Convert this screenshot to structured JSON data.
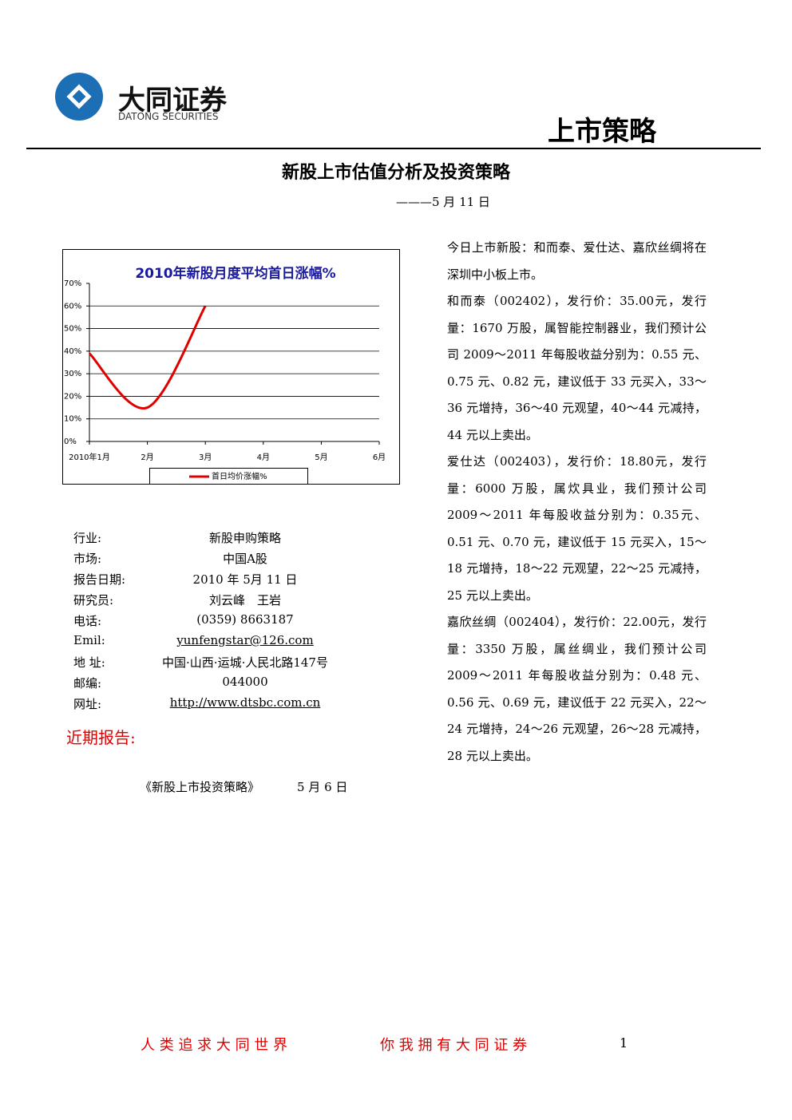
{
  "header": {
    "company": "大同证券",
    "company_en": "DATONG SECURITIES",
    "section": "上市策略"
  },
  "title": "新股上市估值分析及投资策略",
  "date": "———5 月 11 日",
  "chart_data": {
    "type": "line",
    "title": "2010年新股月度平均首日涨幅%",
    "categories": [
      "2010年1月",
      "2月",
      "3月",
      "4月",
      "5月",
      "6月"
    ],
    "series": [
      {
        "name": "首日均价涨幅%",
        "color": "#e00000",
        "values": [
          39,
          15,
          60,
          null,
          null,
          null
        ]
      }
    ],
    "ylim": [
      0,
      70
    ],
    "yticks": [
      {
        "value": 0,
        "label": "0%"
      },
      {
        "value": 10,
        "label": "10%"
      },
      {
        "value": 20,
        "label": "20%"
      },
      {
        "value": 30,
        "label": "30%"
      },
      {
        "value": 40,
        "label": "40%"
      },
      {
        "value": 50,
        "label": "50%"
      },
      {
        "value": 60,
        "label": "60%"
      },
      {
        "value": 70,
        "label": "70%"
      }
    ],
    "grid": true
  },
  "info": {
    "rows": [
      [
        "行业:",
        "新股申购策略"
      ],
      [
        "市场:",
        "中国A股"
      ],
      [
        "报告日期:",
        "2010 年 5月 11 日"
      ],
      [
        "研究员:",
        "刘云峰　王岩"
      ],
      [
        "电话:",
        "(0359) 8663187"
      ],
      [
        "Emil:",
        "yunfengstar@126.com"
      ],
      [
        "地 址:",
        "中国·山西·运城·人民北路147号"
      ],
      [
        "邮编:",
        "044000"
      ],
      [
        "网址:",
        "http://www.dtsbc.com.cn"
      ]
    ]
  },
  "recent": {
    "heading": "近期报告:",
    "items": [
      [
        "《新股上市投资策略》",
        "5 月 6 日"
      ]
    ]
  },
  "body": {
    "paragraphs": [
      "今日上市新股：和而泰、爱仕达、嘉欣丝绸将在深圳中小板上市。",
      "和而泰（002402），发行价：35.00元，发行量：1670 万股，属智能控制器业，我们预计公司 2009～2011 年每股收益分别为：0.55 元、0.75 元、0.82 元，建议低于 33 元买入，33～36 元增持，36～40 元观望，40～44 元减持，44 元以上卖出。",
      "爱仕达（002403），发行价：18.80元，发行量：6000 万股，属炊具业，我们预计公司 2009～2011 年每股收益分别为：0.35元、0.51 元、0.70 元，建议低于 15 元买入，15～18 元增持，18～22 元观望，22～25 元减持，25 元以上卖出。",
      "嘉欣丝绸（002404），发行价：22.00元，发行量：3350 万股，属丝绸业，我们预计公司 2009～2011 年每股收益分别为：0.48 元、0.56 元、0.69 元，建议低于 22 元买入，22～24 元增持，24～26 元观望，26～28 元减持，28 元以上卖出。"
    ]
  },
  "footer": {
    "slogan1": "人 类 追 求 大 同 世 界",
    "slogan2": "你 我 拥 有 大 同 证 券",
    "page": "1"
  }
}
